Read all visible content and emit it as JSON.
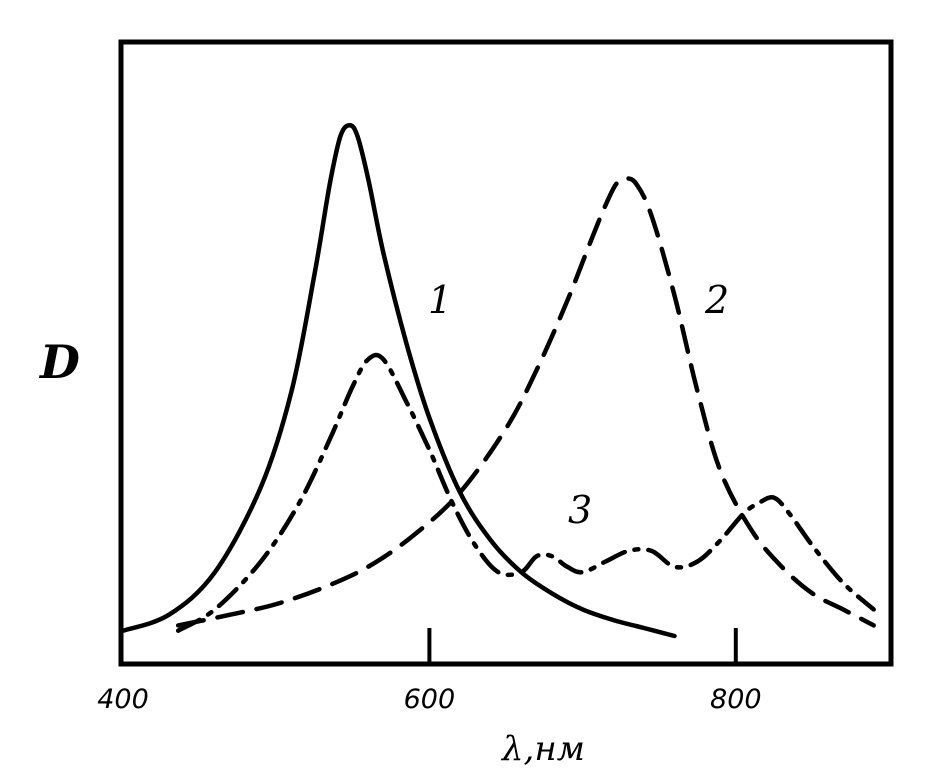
{
  "chart_data": {
    "type": "line",
    "title": "",
    "xlabel": "λ,нм",
    "ylabel": "D",
    "xlim": [
      400,
      900
    ],
    "ylim": [
      0,
      1
    ],
    "xticks": [
      "400",
      "600",
      "800"
    ],
    "yticks": [],
    "grid": false,
    "series": [
      {
        "name": "1",
        "style": "solid",
        "x": [
          400,
          430,
          460,
          490,
          510,
          525,
          535,
          542,
          548,
          553,
          560,
          570,
          585,
          600,
          620,
          640,
          660,
          680,
          700,
          720,
          740,
          760
        ],
        "y": [
          0.01,
          0.04,
          0.12,
          0.28,
          0.46,
          0.68,
          0.85,
          0.94,
          0.96,
          0.94,
          0.86,
          0.72,
          0.55,
          0.41,
          0.27,
          0.18,
          0.12,
          0.08,
          0.05,
          0.03,
          0.015,
          0.0
        ]
      },
      {
        "name": "2",
        "style": "dashed",
        "x": [
          436,
          470,
          500,
          530,
          560,
          590,
          620,
          650,
          670,
          690,
          705,
          715,
          722,
          728,
          735,
          745,
          760,
          775,
          790,
          810,
          830,
          850,
          870,
          890
        ],
        "y": [
          0.02,
          0.04,
          0.06,
          0.09,
          0.13,
          0.19,
          0.27,
          0.39,
          0.5,
          0.63,
          0.74,
          0.81,
          0.85,
          0.86,
          0.85,
          0.79,
          0.64,
          0.46,
          0.31,
          0.2,
          0.13,
          0.08,
          0.05,
          0.02
        ]
      },
      {
        "name": "3",
        "style": "dash-dot",
        "x": [
          436,
          460,
          490,
          515,
          535,
          550,
          560,
          570,
          585,
          600,
          615,
          630,
          645,
          660,
          670,
          680,
          690,
          700,
          715,
          730,
          745,
          760,
          775,
          790,
          805,
          815,
          825,
          835,
          850,
          870,
          890
        ],
        "y": [
          0.01,
          0.05,
          0.14,
          0.25,
          0.37,
          0.47,
          0.52,
          0.52,
          0.44,
          0.35,
          0.25,
          0.17,
          0.12,
          0.12,
          0.15,
          0.15,
          0.13,
          0.12,
          0.14,
          0.16,
          0.16,
          0.13,
          0.14,
          0.18,
          0.23,
          0.25,
          0.26,
          0.23,
          0.17,
          0.1,
          0.05
        ]
      }
    ],
    "labels": [
      {
        "text": "1",
        "series": "1"
      },
      {
        "text": "2",
        "series": "2"
      },
      {
        "text": "3",
        "series": "3"
      }
    ]
  }
}
